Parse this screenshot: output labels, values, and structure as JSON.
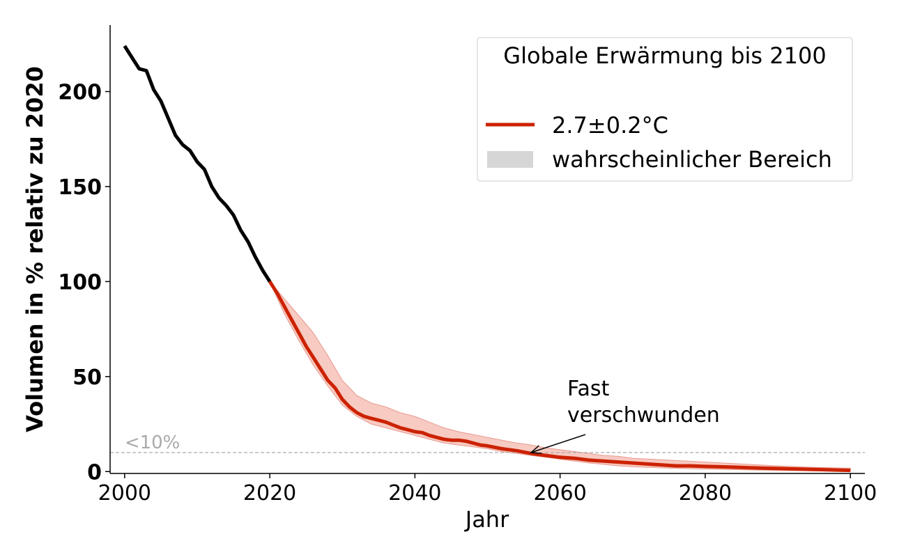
{
  "chart_data": {
    "type": "line",
    "title": "",
    "xlabel": "Jahr",
    "ylabel": "Volumen in % relativ zu 2020",
    "xlim": [
      1998,
      2102
    ],
    "ylim": [
      -1,
      235
    ],
    "xticks": [
      2000,
      2020,
      2040,
      2060,
      2080,
      2100
    ],
    "yticks": [
      0,
      50,
      100,
      150,
      200
    ],
    "grid": false,
    "legend": {
      "title": "Globale Erwärmung bis 2100",
      "placement": "top-right",
      "entries": [
        {
          "label": "2.7±0.2°C",
          "kind": "line",
          "color": "#cc2200"
        },
        {
          "label": "wahrscheinlicher Bereich",
          "kind": "band",
          "color": "#d6d6d6"
        }
      ]
    },
    "threshold": {
      "y": 10,
      "label": "<10%",
      "color": "#aaaaaa"
    },
    "annotation": {
      "text": [
        "Fast",
        "verschwunden"
      ],
      "xy": [
        2056,
        10
      ],
      "xytext": [
        2061,
        40
      ]
    },
    "series": [
      {
        "color": "#000000",
        "x": [
          2000,
          2001,
          2002,
          2003,
          2004,
          2005,
          2006,
          2007,
          2008,
          2009,
          2010,
          2011,
          2012,
          2013,
          2014,
          2015,
          2016,
          2017,
          2018,
          2019,
          2020
        ],
        "y": [
          224,
          218,
          212,
          211,
          201,
          195,
          186,
          177,
          172,
          169,
          163,
          159,
          150,
          144,
          140,
          135,
          127,
          121,
          113,
          106,
          100
        ]
      },
      {
        "name": "2.7±0.2°C",
        "color": "#cc2200",
        "x": [
          2020,
          2021,
          2022,
          2023,
          2024,
          2025,
          2026,
          2027,
          2028,
          2029,
          2030,
          2031,
          2032,
          2033,
          2034,
          2035,
          2036,
          2037,
          2038,
          2039,
          2040,
          2041,
          2042,
          2043,
          2044,
          2045,
          2046,
          2047,
          2048,
          2049,
          2050,
          2052,
          2054,
          2056,
          2058,
          2060,
          2062,
          2064,
          2066,
          2068,
          2070,
          2072,
          2074,
          2076,
          2078,
          2080,
          2082,
          2084,
          2086,
          2088,
          2090,
          2092,
          2094,
          2096,
          2098,
          2100
        ],
        "y": [
          100,
          94,
          87,
          80,
          73,
          66,
          60,
          54,
          48,
          44,
          38,
          34,
          31,
          29,
          28,
          27,
          26,
          24.5,
          23,
          22,
          21,
          20.5,
          19,
          18,
          17,
          16.5,
          16.5,
          16,
          15,
          14,
          13.5,
          12,
          11,
          9.5,
          8.5,
          7.5,
          7,
          6,
          5.5,
          5,
          4.5,
          4,
          3.5,
          3,
          3,
          2.7,
          2.5,
          2.3,
          2,
          1.8,
          1.6,
          1.4,
          1.2,
          1.0,
          0.8,
          0.6
        ]
      }
    ],
    "band": {
      "color": "#f4b8ae",
      "x": [
        2020,
        2022,
        2024,
        2026,
        2028,
        2030,
        2032,
        2034,
        2036,
        2038,
        2040,
        2042,
        2044,
        2046,
        2048,
        2050,
        2052,
        2054,
        2056,
        2058,
        2060,
        2062,
        2064,
        2066,
        2068,
        2070,
        2075,
        2080,
        2085,
        2090,
        2095,
        2100
      ],
      "lower": [
        100,
        83,
        69,
        56,
        45,
        35,
        29,
        25,
        23,
        21,
        19,
        17,
        15,
        14,
        13,
        12,
        10.5,
        9.5,
        8.5,
        7.5,
        6.5,
        5.5,
        4.5,
        3.8,
        3,
        2.5,
        1.8,
        1.3,
        0.9,
        0.6,
        0.4,
        0.2
      ],
      "upper": [
        100,
        91,
        82,
        73,
        61,
        48,
        40,
        36,
        34,
        31,
        29,
        26,
        23,
        21,
        19.5,
        18,
        16.5,
        15,
        14,
        12.5,
        11.5,
        10.5,
        9.5,
        8.5,
        8,
        7,
        6,
        5,
        4,
        3,
        2.2,
        1.8
      ]
    }
  }
}
